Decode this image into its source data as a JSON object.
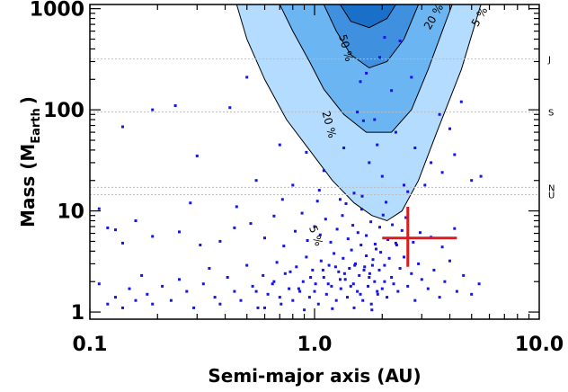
{
  "chart_data": {
    "type": "scatter",
    "title": "",
    "xlabel": "Semi-major axis (AU)",
    "ylabel_main": "Mass (M",
    "ylabel_sub": "Earth",
    "ylabel_close": ")",
    "xscale": "log",
    "yscale": "log",
    "xlim": [
      0.1,
      10.0
    ],
    "ylim": [
      0.85,
      1100
    ],
    "x_ticks": [
      {
        "value": 0.1,
        "label": "0.1"
      },
      {
        "value": 1.0,
        "label": "1.0"
      },
      {
        "value": 10.0,
        "label": "10.0"
      }
    ],
    "y_ticks": [
      {
        "value": 1,
        "label": "1"
      },
      {
        "value": 10,
        "label": "10"
      },
      {
        "value": 100,
        "label": "100"
      },
      {
        "value": 1000,
        "label": "1000"
      }
    ],
    "reference_lines": [
      {
        "label": "J",
        "mass": 318
      },
      {
        "label": "S",
        "mass": 95
      },
      {
        "label": "N",
        "mass": 17.1
      },
      {
        "label": "U",
        "mass": 14.5
      }
    ],
    "contours": [
      {
        "level_label": "5 %",
        "color": "#b3dcff",
        "points": [
          [
            0.45,
            1100
          ],
          [
            0.5,
            500
          ],
          [
            0.6,
            200
          ],
          [
            0.75,
            80
          ],
          [
            0.95,
            40
          ],
          [
            1.2,
            20
          ],
          [
            1.5,
            12
          ],
          [
            1.8,
            9
          ],
          [
            2.1,
            8
          ],
          [
            2.45,
            10
          ],
          [
            2.9,
            20
          ],
          [
            3.5,
            60
          ],
          [
            4.5,
            250
          ],
          [
            5.5,
            1100
          ]
        ]
      },
      {
        "level_label": "20 %",
        "color": "#6bb5f2",
        "points": [
          [
            0.7,
            1100
          ],
          [
            0.8,
            600
          ],
          [
            0.95,
            300
          ],
          [
            1.1,
            160
          ],
          [
            1.35,
            90
          ],
          [
            1.7,
            60
          ],
          [
            2.2,
            60
          ],
          [
            2.7,
            100
          ],
          [
            3.2,
            250
          ],
          [
            3.8,
            700
          ],
          [
            4.1,
            1100
          ]
        ]
      },
      {
        "level_label": "50 %",
        "color": "#3f90df",
        "points": [
          [
            1.1,
            1100
          ],
          [
            1.25,
            600
          ],
          [
            1.45,
            350
          ],
          [
            1.75,
            260
          ],
          [
            2.1,
            300
          ],
          [
            2.5,
            500
          ],
          [
            2.9,
            1100
          ]
        ]
      },
      {
        "level_label": "",
        "color": "#1a6fc8",
        "points": [
          [
            1.3,
            1100
          ],
          [
            1.45,
            750
          ],
          [
            1.75,
            650
          ],
          [
            2.1,
            800
          ],
          [
            2.3,
            1100
          ]
        ]
      }
    ],
    "contour_labels": [
      {
        "text": "5 %",
        "x": 0.98,
        "y": 5.5,
        "angle": 70
      },
      {
        "text": "20 %",
        "x": 1.12,
        "y": 70,
        "angle": 75
      },
      {
        "text": "50 %",
        "x": 1.33,
        "y": 400,
        "angle": 75
      },
      {
        "text": "20 %",
        "x": 3.5,
        "y": 800,
        "angle": -60
      },
      {
        "text": "5 %",
        "x": 5.6,
        "y": 800,
        "angle": -60
      }
    ],
    "marker": {
      "x": 2.6,
      "y": 5.4,
      "x_low": 2.0,
      "x_high": 4.3,
      "y_low": 2.8,
      "y_high": 11,
      "color": "#e01a1a"
    },
    "scatter_points": [
      [
        0.12,
        1.2
      ],
      [
        0.13,
        1.4
      ],
      [
        0.14,
        1.1
      ],
      [
        0.15,
        1.7
      ],
      [
        0.16,
        1.3
      ],
      [
        0.11,
        1.9
      ],
      [
        0.17,
        2.3
      ],
      [
        0.18,
        1.5
      ],
      [
        0.19,
        1.2
      ],
      [
        0.21,
        1.8
      ],
      [
        0.23,
        1.3
      ],
      [
        0.25,
        2.1
      ],
      [
        0.27,
        1.6
      ],
      [
        0.29,
        1.1
      ],
      [
        0.32,
        1.9
      ],
      [
        0.34,
        2.7
      ],
      [
        0.36,
        1.4
      ],
      [
        0.38,
        1.2
      ],
      [
        0.41,
        2.2
      ],
      [
        0.44,
        1.6
      ],
      [
        0.47,
        1.3
      ],
      [
        0.5,
        2.9
      ],
      [
        0.53,
        1.8
      ],
      [
        0.56,
        1.1
      ],
      [
        0.59,
        2.3
      ],
      [
        0.62,
        1.5
      ],
      [
        0.65,
        1.9
      ],
      [
        0.68,
        3.1
      ],
      [
        0.71,
        1.2
      ],
      [
        0.74,
        2.4
      ],
      [
        0.77,
        1.7
      ],
      [
        0.8,
        1.3
      ],
      [
        0.83,
        2.8
      ],
      [
        0.86,
        1.6
      ],
      [
        0.89,
        2.0
      ],
      [
        0.92,
        3.5
      ],
      [
        0.95,
        1.4
      ],
      [
        0.98,
        2.6
      ],
      [
        1.01,
        1.9
      ],
      [
        1.04,
        1.2
      ],
      [
        1.07,
        3.2
      ],
      [
        1.1,
        2.2
      ],
      [
        1.13,
        1.5
      ],
      [
        1.16,
        2.9
      ],
      [
        1.19,
        1.8
      ],
      [
        1.22,
        3.8
      ],
      [
        1.25,
        1.3
      ],
      [
        1.28,
        2.5
      ],
      [
        1.31,
        1.7
      ],
      [
        1.34,
        3.4
      ],
      [
        1.37,
        2.1
      ],
      [
        1.4,
        1.4
      ],
      [
        1.43,
        2.7
      ],
      [
        1.46,
        4.1
      ],
      [
        1.49,
        1.9
      ],
      [
        1.52,
        3.0
      ],
      [
        1.55,
        1.6
      ],
      [
        1.58,
        2.3
      ],
      [
        1.61,
        4.6
      ],
      [
        1.64,
        1.3
      ],
      [
        1.67,
        2.8
      ],
      [
        1.7,
        3.6
      ],
      [
        1.73,
        1.8
      ],
      [
        1.76,
        2.4
      ],
      [
        1.79,
        1.2
      ],
      [
        1.82,
        3.3
      ],
      [
        1.85,
        2.0
      ],
      [
        1.88,
        4.2
      ],
      [
        1.91,
        1.5
      ],
      [
        1.94,
        2.6
      ],
      [
        1.97,
        3.9
      ],
      [
        2.0,
        1.7
      ],
      [
        2.05,
        2.9
      ],
      [
        2.1,
        1.4
      ],
      [
        2.15,
        3.4
      ],
      [
        2.2,
        2.2
      ],
      [
        2.25,
        1.9
      ],
      [
        2.3,
        4.8
      ],
      [
        2.35,
        1.6
      ],
      [
        2.4,
        2.7
      ],
      [
        2.5,
        3.5
      ],
      [
        2.6,
        1.8
      ],
      [
        2.7,
        2.4
      ],
      [
        2.8,
        1.3
      ],
      [
        2.9,
        3.0
      ],
      [
        3.0,
        2.1
      ],
      [
        3.2,
        1.7
      ],
      [
        3.4,
        2.6
      ],
      [
        3.6,
        1.4
      ],
      [
        3.8,
        2.0
      ],
      [
        4.0,
        3.2
      ],
      [
        4.3,
        1.6
      ],
      [
        4.6,
        2.3
      ],
      [
        5.0,
        1.5
      ],
      [
        5.4,
        1.9
      ],
      [
        0.6,
        1.1
      ],
      [
        0.9,
        1.05
      ],
      [
        1.2,
        1.08
      ],
      [
        1.5,
        1.1
      ],
      [
        1.8,
        1.05
      ],
      [
        0.7,
        1.4
      ],
      [
        0.85,
        1.7
      ],
      [
        1.0,
        1.6
      ],
      [
        1.15,
        1.9
      ],
      [
        1.3,
        2.1
      ],
      [
        1.45,
        1.8
      ],
      [
        1.6,
        1.5
      ],
      [
        1.75,
        2.2
      ],
      [
        1.9,
        1.6
      ],
      [
        2.05,
        2.0
      ],
      [
        0.55,
        1.6
      ],
      [
        0.66,
        2.0
      ],
      [
        0.78,
        2.5
      ],
      [
        0.96,
        2.2
      ],
      [
        1.09,
        2.6
      ],
      [
        1.24,
        2.8
      ],
      [
        1.36,
        2.4
      ],
      [
        1.51,
        2.9
      ],
      [
        1.66,
        2.6
      ],
      [
        1.81,
        2.9
      ],
      [
        0.14,
        4.8
      ],
      [
        0.13,
        6.5
      ],
      [
        0.16,
        8.0
      ],
      [
        0.19,
        5.6
      ],
      [
        0.25,
        6.2
      ],
      [
        0.31,
        4.6
      ],
      [
        0.38,
        5.0
      ],
      [
        0.44,
        6.8
      ],
      [
        0.52,
        7.5
      ],
      [
        0.6,
        5.4
      ],
      [
        0.66,
        8.9
      ],
      [
        0.73,
        4.5
      ],
      [
        0.82,
        6.3
      ],
      [
        0.88,
        9.5
      ],
      [
        0.93,
        5.1
      ],
      [
        1.0,
        7.0
      ],
      [
        1.06,
        5.8
      ],
      [
        1.12,
        8.3
      ],
      [
        1.18,
        4.9
      ],
      [
        1.26,
        6.6
      ],
      [
        1.33,
        9.0
      ],
      [
        1.41,
        5.3
      ],
      [
        1.48,
        7.2
      ],
      [
        1.56,
        6.1
      ],
      [
        1.62,
        10.4
      ],
      [
        1.7,
        5.7
      ],
      [
        1.78,
        7.8
      ],
      [
        1.86,
        4.7
      ],
      [
        1.95,
        6.9
      ],
      [
        2.02,
        9.1
      ],
      [
        2.12,
        5.2
      ],
      [
        2.22,
        7.3
      ],
      [
        2.32,
        4.6
      ],
      [
        2.45,
        6.4
      ],
      [
        2.55,
        8.6
      ],
      [
        2.75,
        4.9
      ],
      [
        2.95,
        6.1
      ],
      [
        3.3,
        5.5
      ],
      [
        3.7,
        4.4
      ],
      [
        4.2,
        6.7
      ],
      [
        0.11,
        10.5
      ],
      [
        0.12,
        6.8
      ],
      [
        0.28,
        12.0
      ],
      [
        0.45,
        11.0
      ],
      [
        0.72,
        13.0
      ],
      [
        1.03,
        12.5
      ],
      [
        1.38,
        11.8
      ],
      [
        1.63,
        14.0
      ],
      [
        2.08,
        12.2
      ],
      [
        2.6,
        15.5
      ],
      [
        0.24,
        110
      ],
      [
        0.14,
        68
      ],
      [
        0.19,
        100
      ],
      [
        0.42,
        105
      ],
      [
        0.7,
        45
      ],
      [
        0.3,
        35
      ],
      [
        0.55,
        20
      ],
      [
        1.55,
        95
      ],
      [
        1.65,
        78
      ],
      [
        1.75,
        30
      ],
      [
        1.9,
        45
      ],
      [
        1.85,
        80
      ],
      [
        0.92,
        38
      ],
      [
        1.1,
        25
      ],
      [
        1.35,
        42
      ],
      [
        2.3,
        60
      ],
      [
        2.8,
        42
      ],
      [
        3.1,
        18
      ],
      [
        3.3,
        30
      ],
      [
        3.7,
        24
      ],
      [
        4.2,
        36
      ],
      [
        4.5,
        120
      ],
      [
        5.0,
        20
      ],
      [
        5.5,
        22
      ],
      [
        1.05,
        16
      ],
      [
        0.8,
        18
      ],
      [
        1.3,
        13
      ],
      [
        1.5,
        15
      ],
      [
        2.0,
        22
      ],
      [
        2.5,
        18
      ],
      [
        1.7,
        230
      ],
      [
        2.4,
        480
      ],
      [
        2.2,
        155
      ],
      [
        3.6,
        90
      ],
      [
        1.95,
        330
      ],
      [
        2.05,
        520
      ],
      [
        1.6,
        190
      ],
      [
        2.7,
        210
      ],
      [
        0.5,
        210
      ],
      [
        4.0,
        65
      ]
    ]
  }
}
